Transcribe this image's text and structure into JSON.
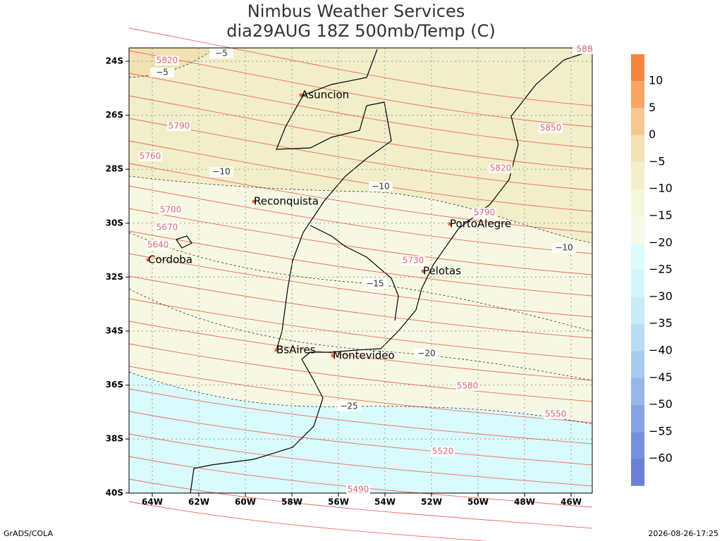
{
  "title": [
    "Nimbus Weather Services",
    "dia29AUG 18Z 500mb/Temp (C)"
  ],
  "lat_labels": [
    "24S",
    "26S",
    "28S",
    "30S",
    "32S",
    "34S",
    "36S",
    "38S",
    "40S"
  ],
  "lon_labels": [
    "64W",
    "62W",
    "60W",
    "58W",
    "56W",
    "54W",
    "52W",
    "50W",
    "48W",
    "46W"
  ],
  "cities": [
    "Asuncion",
    "Reconquista",
    "PortoAlegre",
    "Cordoba",
    "Pelotas",
    "BsAires",
    "Montevideo"
  ],
  "contour_labels": [
    "5820",
    "−5",
    "−5",
    "5790",
    "5760",
    "−10",
    "−10",
    "5700",
    "5670",
    "5640",
    "5850",
    "5820",
    "5790",
    "−10",
    "5730",
    "−15",
    "−20",
    "5580",
    "−25",
    "5550",
    "5520",
    "5490",
    "588"
  ],
  "colorbar": {
    "labels": [
      "10",
      "5",
      "0",
      "−5",
      "−10",
      "−15",
      "−20",
      "−25",
      "−30",
      "−35",
      "−40",
      "−45",
      "−50",
      "−55",
      "−60"
    ],
    "colors": [
      "#f5843f",
      "#f8a566",
      "#f5c792",
      "#f1e1b3",
      "#f1eec9",
      "#f6f7dd",
      "#f8f9e8",
      "#dcfcfd",
      "#d2f5fa",
      "#c8ebf7",
      "#b8dcf2",
      "#a8c9ee",
      "#97b5e8",
      "#86a2e2",
      "#7590dc",
      "#6a80d6"
    ]
  },
  "footer": {
    "left": "GrADS/COLA",
    "right": "2026-08-26-17:25"
  }
}
